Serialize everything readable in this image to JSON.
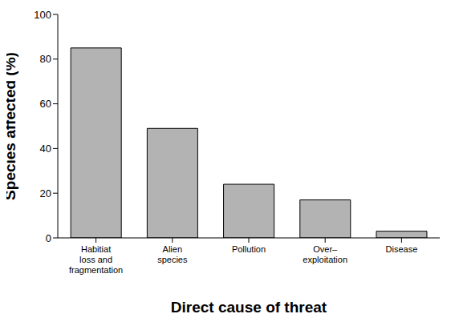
{
  "chart_data": {
    "type": "bar",
    "categories": [
      "Habitiat loss and fragmentation",
      "Alien species",
      "Pollution",
      "Over–exploitation",
      "Disease"
    ],
    "values": [
      85,
      49,
      24,
      17,
      3
    ],
    "color": "#b3b3b3",
    "x_label": "Direct cause of threat",
    "y_label": "Species affected (%)",
    "ylim": [
      0,
      100
    ],
    "yticks": [
      0,
      20,
      40,
      60,
      80,
      100
    ]
  }
}
